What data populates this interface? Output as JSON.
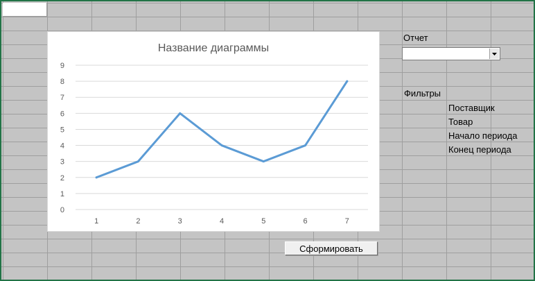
{
  "chart_data": {
    "type": "line",
    "title": "Название диаграммы",
    "x": [
      1,
      2,
      3,
      4,
      5,
      6,
      7
    ],
    "series": [
      {
        "values": [
          2,
          3,
          6,
          4,
          3,
          4,
          8
        ]
      }
    ],
    "ylim": [
      0,
      9
    ],
    "yticks": [
      0,
      1,
      2,
      3,
      4,
      5,
      6,
      7,
      8,
      9
    ],
    "grid": true,
    "colors": {
      "line": "#5b9bd5",
      "grid": "#d9d9d9",
      "axis_text": "#595959",
      "title": "#595959"
    }
  },
  "report": {
    "label": "Отчет",
    "selected": ""
  },
  "filters": {
    "label": "Фильтры",
    "items": [
      "Поставщик",
      "Товар",
      "Начало периода",
      "Конец периода"
    ]
  },
  "generate_button": {
    "label": "Сформировать"
  }
}
